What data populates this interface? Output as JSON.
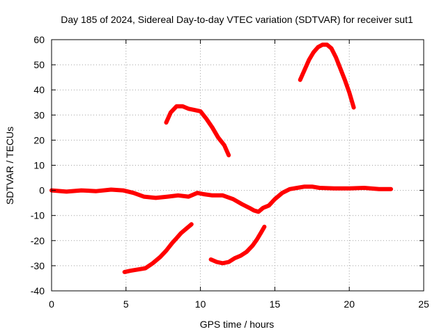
{
  "chart_data": {
    "type": "scatter",
    "title": "Day 185 of 2024, Sidereal Day-to-day VTEC variation (SDTVAR) for receiver sut1",
    "xlabel": "GPS time / hours",
    "ylabel": "SDTVAR / TECUs",
    "xlim": [
      0,
      25
    ],
    "ylim": [
      -40,
      60
    ],
    "xticks": [
      0,
      5,
      10,
      15,
      20,
      25
    ],
    "yticks": [
      -40,
      -30,
      -20,
      -10,
      0,
      10,
      20,
      30,
      40,
      50,
      60
    ],
    "xtick_labels": [
      "0",
      "5",
      "10",
      "15",
      "20",
      "25"
    ],
    "ytick_labels": [
      "-40",
      "-30",
      "-20",
      "-10",
      "0",
      "10",
      "20",
      "30",
      "40",
      "50",
      "60"
    ],
    "grid": true,
    "color": "#ff0000",
    "series": [
      {
        "name": "near-zero baseline",
        "x": [
          0,
          1,
          2,
          3,
          4,
          4.8,
          5.5,
          6.2,
          7,
          7.8,
          8.5,
          9.2,
          9.8,
          10.2,
          10.8,
          11.5,
          12.2,
          12.8,
          13.3,
          13.6,
          13.9,
          14.2,
          14.6,
          15,
          15.5,
          16,
          16.5,
          17,
          17.5,
          18,
          19,
          20,
          21,
          22,
          22.8
        ],
        "y": [
          0,
          -0.5,
          0,
          -0.3,
          0.3,
          0,
          -1,
          -2.5,
          -3,
          -2.5,
          -2,
          -2.5,
          -1,
          -1.5,
          -2,
          -2,
          -3.5,
          -5.5,
          -7,
          -8,
          -8.5,
          -7,
          -6,
          -3.5,
          -1,
          0.5,
          1,
          1.5,
          1.5,
          1,
          0.8,
          0.8,
          1,
          0.5,
          0.5
        ]
      },
      {
        "name": "arc 7.7-11.9 h",
        "x": [
          7.7,
          8,
          8.4,
          8.8,
          9.2,
          9.6,
          10,
          10.4,
          10.8,
          11.2,
          11.6,
          11.9
        ],
        "y": [
          27,
          31,
          33.5,
          33.5,
          32.5,
          32,
          31.5,
          28.5,
          25,
          21,
          18,
          14
        ]
      },
      {
        "name": "arc 16.7-20.3 h",
        "x": [
          16.7,
          17,
          17.3,
          17.6,
          17.9,
          18.2,
          18.5,
          18.8,
          19.1,
          19.4,
          19.7,
          20,
          20.3
        ],
        "y": [
          44,
          48,
          52,
          55,
          57,
          58,
          58,
          56.5,
          53,
          48.5,
          44,
          39,
          33
        ]
      },
      {
        "name": "arc 4.9-9.4 h",
        "x": [
          4.9,
          5.3,
          5.8,
          6.3,
          6.8,
          7.3,
          7.7,
          8.1,
          8.4,
          8.7,
          9,
          9.4
        ],
        "y": [
          -32.5,
          -32,
          -31.5,
          -31,
          -29,
          -26.5,
          -24,
          -21,
          -19,
          -17,
          -15.5,
          -13.5
        ]
      },
      {
        "name": "arc 10.7-14.3 h",
        "x": [
          10.7,
          11.1,
          11.5,
          11.9,
          12.3,
          12.7,
          13.1,
          13.5,
          13.8,
          14.1,
          14.3
        ],
        "y": [
          -27.5,
          -28.5,
          -29,
          -28.5,
          -27,
          -26,
          -24.5,
          -22,
          -19.5,
          -16.5,
          -14.5
        ]
      }
    ]
  }
}
